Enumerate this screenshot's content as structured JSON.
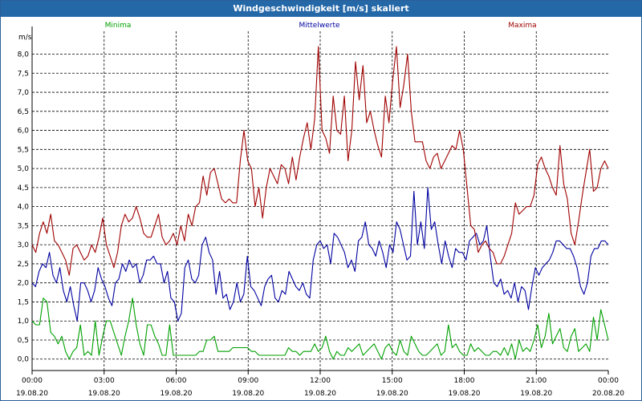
{
  "window": {
    "title": "Windgeschwindigkeit [m/s] skaliert"
  },
  "chart_data": {
    "type": "line",
    "title": "Windgeschwindigkeit [m/s] skaliert",
    "ylabel": "m/s",
    "xlabel": "",
    "ylim": [
      -0.3,
      8.6
    ],
    "xlim_hours": [
      0,
      24
    ],
    "y_ticks": [
      "0,0",
      "0,5",
      "1,0",
      "1,5",
      "2,0",
      "2,5",
      "3,0",
      "3,5",
      "4,0",
      "4,5",
      "5,0",
      "5,5",
      "6,0",
      "6,5",
      "7,0",
      "7,5",
      "8,0"
    ],
    "x_ticks": [
      {
        "time": "00:00",
        "date": "19.08.20"
      },
      {
        "time": "03:00",
        "date": "19.08.20"
      },
      {
        "time": "06:00",
        "date": "19.08.20"
      },
      {
        "time": "09:00",
        "date": "19.08.20"
      },
      {
        "time": "12:00",
        "date": "19.08.20"
      },
      {
        "time": "15:00",
        "date": "19.08.20"
      },
      {
        "time": "18:00",
        "date": "19.08.20"
      },
      {
        "time": "21:00",
        "date": "19.08.20"
      },
      {
        "time": "00:00",
        "date": "20.08.20"
      }
    ],
    "grid": true,
    "legend_placement": "top",
    "series": [
      {
        "name": "Minima",
        "color": "#00a000",
        "values": [
          1.0,
          0.9,
          0.9,
          1.6,
          1.5,
          0.7,
          0.6,
          0.4,
          0.6,
          0.2,
          0.0,
          0.2,
          0.3,
          0.9,
          0.1,
          0.2,
          0.1,
          1.0,
          0.1,
          0.6,
          1.0,
          1.0,
          0.7,
          0.4,
          0.1,
          0.6,
          1.0,
          1.6,
          0.9,
          0.4,
          0.1,
          0.9,
          0.9,
          0.6,
          0.4,
          0.1,
          0.1,
          0.9,
          0.1,
          0.1,
          0.1,
          0.1,
          0.1,
          0.1,
          0.1,
          0.2,
          0.2,
          0.5,
          0.5,
          0.6,
          0.2,
          0.2,
          0.2,
          0.2,
          0.3,
          0.3,
          0.3,
          0.3,
          0.3,
          0.2,
          0.2,
          0.1,
          0.1,
          0.1,
          0.1,
          0.1,
          0.1,
          0.1,
          0.1,
          0.3,
          0.2,
          0.2,
          0.1,
          0.2,
          0.2,
          0.2,
          0.4,
          0.2,
          0.3,
          0.6,
          0.2,
          0.0,
          0.2,
          0.1,
          0.1,
          0.3,
          0.2,
          0.3,
          0.4,
          0.1,
          0.2,
          0.3,
          0.4,
          0.2,
          0.0,
          0.3,
          0.4,
          0.2,
          0.1,
          0.5,
          0.2,
          0.1,
          0.6,
          0.4,
          0.2,
          0.1,
          0.1,
          0.2,
          0.3,
          0.4,
          0.1,
          0.2,
          0.9,
          0.3,
          0.4,
          0.2,
          0.1,
          0.1,
          0.4,
          0.2,
          0.3,
          0.2,
          0.1,
          0.1,
          0.2,
          0.2,
          0.1,
          0.3,
          0.1,
          0.4,
          0.0,
          0.5,
          0.2,
          0.3,
          0.2,
          0.5,
          0.9,
          0.3,
          0.6,
          1.2,
          0.4,
          0.6,
          0.8,
          0.3,
          0.2,
          0.6,
          0.8,
          0.2,
          0.3,
          0.4,
          0.2,
          1.1,
          0.5,
          1.3,
          0.9,
          0.5
        ]
      },
      {
        "name": "Mittelwerte",
        "color": "#0000a0",
        "values": [
          2.0,
          1.9,
          2.3,
          2.5,
          2.4,
          2.8,
          2.2,
          2.0,
          2.4,
          1.8,
          1.5,
          1.9,
          1.4,
          1.0,
          2.0,
          2.0,
          1.8,
          1.5,
          1.8,
          2.4,
          2.1,
          1.9,
          1.6,
          1.4,
          2.0,
          2.1,
          2.5,
          2.3,
          2.6,
          2.4,
          2.5,
          2.0,
          2.2,
          2.6,
          2.6,
          2.7,
          2.5,
          2.5,
          2.0,
          2.3,
          1.6,
          1.5,
          1.0,
          1.2,
          2.4,
          2.6,
          2.1,
          2.0,
          2.2,
          3.0,
          3.2,
          2.8,
          2.6,
          1.7,
          2.3,
          1.6,
          1.7,
          1.3,
          1.5,
          2.0,
          1.5,
          1.7,
          2.7,
          1.9,
          1.8,
          1.6,
          1.4,
          1.9,
          2.1,
          2.2,
          1.6,
          1.5,
          1.8,
          1.7,
          2.3,
          2.1,
          1.9,
          1.8,
          2.0,
          1.7,
          1.6,
          2.6,
          3.0,
          3.1,
          2.9,
          3.0,
          2.5,
          3.3,
          3.2,
          3.0,
          2.8,
          2.4,
          2.6,
          2.3,
          3.1,
          3.2,
          3.6,
          3.0,
          2.9,
          2.7,
          3.1,
          2.8,
          2.4,
          3.0,
          2.8,
          3.6,
          3.4,
          3.0,
          2.6,
          2.7,
          4.4,
          3.0,
          3.6,
          2.9,
          4.5,
          3.4,
          3.6,
          3.0,
          2.5,
          3.1,
          2.7,
          2.4,
          2.9,
          2.8,
          2.8,
          2.6,
          3.1,
          3.2,
          3.3,
          3.0,
          3.1,
          3.5,
          2.7,
          2.0,
          1.9,
          2.1,
          1.7,
          1.8,
          1.6,
          2.0,
          1.5,
          1.9,
          1.8,
          1.3,
          1.9,
          2.4,
          2.2,
          2.4,
          2.5,
          2.6,
          2.8,
          3.1,
          3.1,
          3.0,
          2.9,
          2.9,
          2.7,
          2.4,
          1.9,
          1.7,
          2.0,
          2.7,
          2.9,
          2.9,
          3.1,
          3.1,
          3.0
        ]
      },
      {
        "name": "Maxima",
        "color": "#a00000",
        "values": [
          3.0,
          2.8,
          3.3,
          3.6,
          3.3,
          3.8,
          3.1,
          3.0,
          2.8,
          2.6,
          2.2,
          2.9,
          3.0,
          2.8,
          2.6,
          2.7,
          3.0,
          2.8,
          3.2,
          3.7,
          3.0,
          2.7,
          2.4,
          2.8,
          3.5,
          3.8,
          3.6,
          3.7,
          4.0,
          3.7,
          3.3,
          3.2,
          3.2,
          3.5,
          3.8,
          3.2,
          3.0,
          3.1,
          3.3,
          3.0,
          3.5,
          3.1,
          3.8,
          3.5,
          4.0,
          4.1,
          4.8,
          4.3,
          4.9,
          5.0,
          4.6,
          4.2,
          4.1,
          4.2,
          4.1,
          4.1,
          5.2,
          6.0,
          5.2,
          5.0,
          4.0,
          4.5,
          3.7,
          4.5,
          5.0,
          4.8,
          4.6,
          5.1,
          5.0,
          4.6,
          5.3,
          4.7,
          5.3,
          5.8,
          6.2,
          5.5,
          6.3,
          8.2,
          6.0,
          5.8,
          5.4,
          6.9,
          6.0,
          5.9,
          6.9,
          5.2,
          6.0,
          7.8,
          6.8,
          7.7,
          6.2,
          6.5,
          6.0,
          5.6,
          5.3,
          6.9,
          6.2,
          7.3,
          8.2,
          6.6,
          7.2,
          8.0,
          6.5,
          5.7,
          5.7,
          5.7,
          5.2,
          5.0,
          5.3,
          5.4,
          5.0,
          5.2,
          5.4,
          5.6,
          5.5,
          6.0,
          5.5,
          4.5,
          3.5,
          3.4,
          2.8,
          3.0,
          3.1,
          2.9,
          2.8,
          2.5,
          2.5,
          2.7,
          3.0,
          3.3,
          4.1,
          3.8,
          3.9,
          4.0,
          4.0,
          4.3,
          5.1,
          5.3,
          5.0,
          4.8,
          4.5,
          4.3,
          5.6,
          4.6,
          4.2,
          3.3,
          3.0,
          3.6,
          4.3,
          4.9,
          5.5,
          4.4,
          4.5,
          5.0,
          5.2,
          5.0
        ]
      }
    ]
  }
}
